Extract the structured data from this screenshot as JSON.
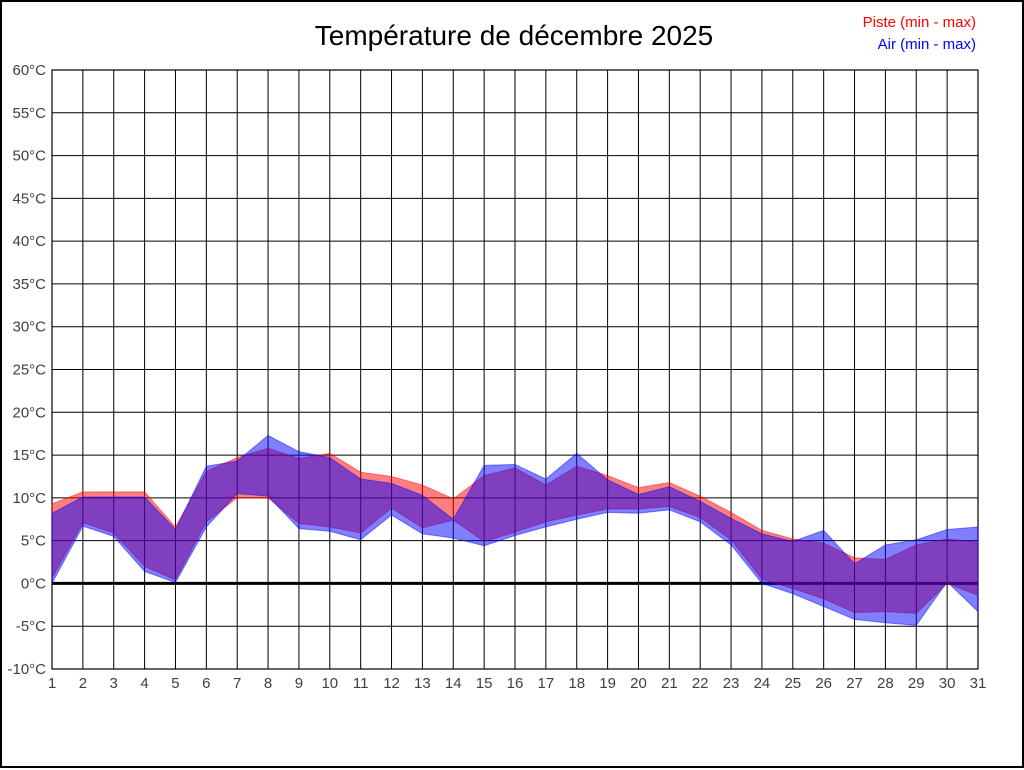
{
  "title": "Température de décembre 2025",
  "legend": {
    "items": [
      {
        "label": "Piste (min - max)",
        "color": "#ff0000"
      },
      {
        "label": "Air (min - max)",
        "color": "#0000ff"
      }
    ]
  },
  "colors": {
    "grid": "#000000",
    "zero_line": "#000000",
    "tick_text": "#404040",
    "background": "#ffffff",
    "piste_band": "#ff0000",
    "air_band": "#0000ff",
    "band_opacity": 0.5
  },
  "chart_data": {
    "type": "area",
    "subtype": "min-max-band",
    "title": "Température de décembre 2025",
    "xlabel": "",
    "ylabel": "",
    "xlim": [
      1,
      31
    ],
    "ylim": [
      -10,
      60
    ],
    "grid": "on",
    "legend_position": "top-right",
    "x": [
      1,
      2,
      3,
      4,
      5,
      6,
      7,
      8,
      9,
      10,
      11,
      12,
      13,
      14,
      15,
      16,
      17,
      18,
      19,
      20,
      21,
      22,
      23,
      24,
      25,
      26,
      27,
      28,
      29,
      30,
      31
    ],
    "x_tick_labels": [
      "1",
      "2",
      "3",
      "4",
      "5",
      "6",
      "7",
      "8",
      "9",
      "10",
      "11",
      "12",
      "13",
      "14",
      "15",
      "16",
      "17",
      "18",
      "19",
      "20",
      "21",
      "22",
      "23",
      "24",
      "25",
      "26",
      "27",
      "28",
      "29",
      "30",
      "31"
    ],
    "y_tick_values": [
      60,
      55,
      50,
      45,
      40,
      35,
      30,
      25,
      20,
      15,
      10,
      5,
      0,
      -5,
      -10
    ],
    "y_tick_labels": [
      "60°C",
      "55°C",
      "50°C",
      "45°C",
      "40°C",
      "35°C",
      "30°C",
      "25°C",
      "20°C",
      "15°C",
      "10°C",
      "5°C",
      "0°C",
      "-5°C",
      "-10°C"
    ],
    "series": [
      {
        "name": "Piste (min - max)",
        "color": "#ff0000",
        "opacity": 0.5,
        "min": [
          0.6,
          7.1,
          5.9,
          2.0,
          0.4,
          7.2,
          10.0,
          10.0,
          7.0,
          6.6,
          5.9,
          8.8,
          6.5,
          7.4,
          4.9,
          6.0,
          7.2,
          8.0,
          8.7,
          8.7,
          9.0,
          7.7,
          5.1,
          0.5,
          -0.6,
          -1.8,
          -3.4,
          -3.3,
          -3.5,
          0.0,
          -1.4
        ],
        "max": [
          9.3,
          10.7,
          10.7,
          10.7,
          6.6,
          13.1,
          14.7,
          15.8,
          14.6,
          15.2,
          13.0,
          12.5,
          11.5,
          9.9,
          12.6,
          13.5,
          11.5,
          13.7,
          12.6,
          11.2,
          11.8,
          10.2,
          8.3,
          6.2,
          5.2,
          4.7,
          3.0,
          2.8,
          4.5,
          5.2,
          4.8
        ]
      },
      {
        "name": "Air (min - max)",
        "color": "#0000ff",
        "opacity": 0.5,
        "min": [
          0.0,
          6.7,
          5.5,
          1.4,
          0.1,
          6.6,
          10.5,
          10.2,
          6.4,
          6.1,
          5.1,
          8.0,
          5.8,
          5.3,
          4.4,
          5.6,
          6.6,
          7.5,
          8.3,
          8.2,
          8.6,
          7.2,
          4.5,
          0.0,
          -1.2,
          -2.7,
          -4.2,
          -4.6,
          -4.9,
          0.2,
          -3.3
        ],
        "max": [
          8.2,
          10.1,
          10.1,
          10.1,
          6.3,
          13.7,
          14.3,
          17.3,
          15.4,
          14.7,
          12.2,
          11.7,
          10.3,
          7.5,
          13.8,
          13.9,
          12.2,
          15.2,
          12.1,
          10.4,
          11.3,
          9.6,
          7.6,
          5.8,
          4.9,
          6.2,
          2.3,
          4.5,
          5.1,
          6.3,
          6.6
        ]
      }
    ]
  }
}
